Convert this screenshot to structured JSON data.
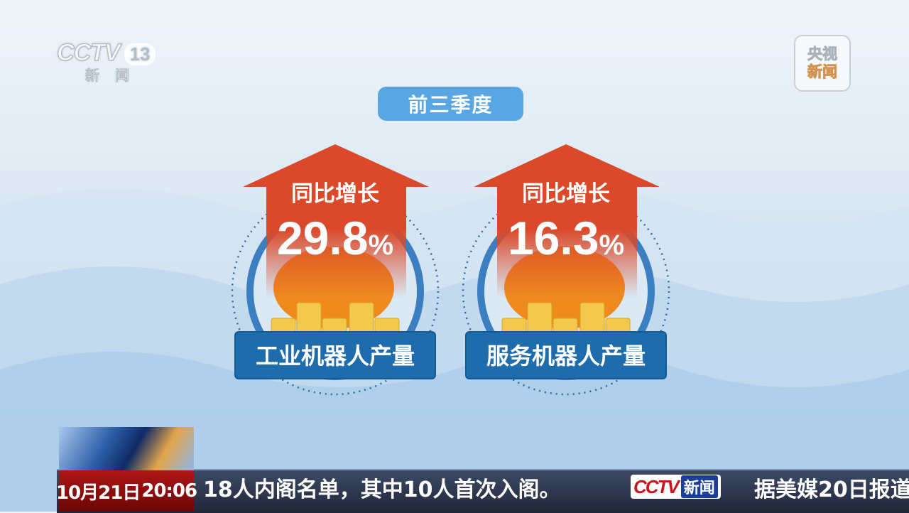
{
  "channel_logo": {
    "brand": "CCTV",
    "number": "13",
    "sub": "新闻"
  },
  "corner_logo": {
    "line1": "央视",
    "line2": "新闻"
  },
  "period_label": "前三季度",
  "cards": [
    {
      "heading": "同比增长",
      "value": "29.8",
      "unit": "%",
      "label": "工业机器人产量"
    },
    {
      "heading": "同比增长",
      "value": "16.3",
      "unit": "%",
      "label": "服务机器人产量"
    }
  ],
  "ticker": {
    "date": "10月21日",
    "time": "20:06",
    "headline_1": "18人内阁名单，其中10人首次入阁。",
    "logo_brand": "CCTV",
    "logo_sub": "新闻",
    "headline_2": "据美媒20日报道"
  },
  "colors": {
    "arrow": "#d9492a",
    "label_box": "#1f6cad",
    "pill": "#5aa6e3",
    "coin": "#f2c94c",
    "sun": "#ef8a1f"
  }
}
